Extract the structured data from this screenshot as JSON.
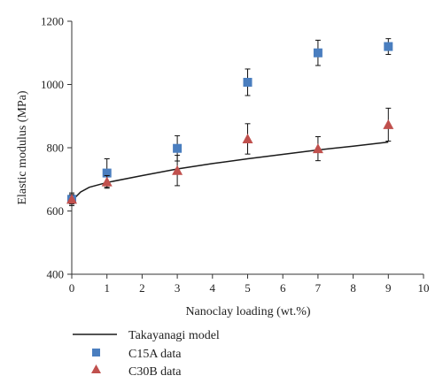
{
  "chart_data": {
    "type": "scatter",
    "title": "",
    "xlabel": "Nanoclay loading (wt.%)",
    "ylabel": "Elastic modulus (MPa)",
    "xlim": [
      0,
      10
    ],
    "ylim": [
      400,
      1200
    ],
    "x_ticks": [
      "0",
      "1",
      "2",
      "3",
      "4",
      "5",
      "6",
      "7",
      "8",
      "9",
      "10"
    ],
    "y_ticks": [
      "400",
      "600",
      "800",
      "1000",
      "1200"
    ],
    "grid": false,
    "legend_position": "bottom",
    "series": [
      {
        "name": "Takayanagi model",
        "kind": "line",
        "color": "#1a1a1a",
        "points": [
          [
            0,
            632
          ],
          [
            0.25,
            660
          ],
          [
            0.5,
            675
          ],
          [
            1,
            690
          ],
          [
            2,
            712
          ],
          [
            3,
            733
          ],
          [
            4,
            750
          ],
          [
            5,
            765
          ],
          [
            6,
            779
          ],
          [
            7,
            793
          ],
          [
            8,
            805
          ],
          [
            9,
            818
          ]
        ]
      },
      {
        "name": "C15A data",
        "kind": "square-markers",
        "color": "#4a7ebf",
        "points": [
          {
            "x": 0,
            "y": 637,
            "err": 20
          },
          {
            "x": 1,
            "y": 720,
            "err": 45
          },
          {
            "x": 3,
            "y": 798,
            "err": 40
          },
          {
            "x": 5,
            "y": 1007,
            "err": 42
          },
          {
            "x": 7,
            "y": 1100,
            "err": 40
          },
          {
            "x": 9,
            "y": 1120,
            "err": 25
          }
        ]
      },
      {
        "name": "C30B data",
        "kind": "triangle-markers",
        "color": "#c0504d",
        "points": [
          {
            "x": 0,
            "y": 637,
            "err": 15
          },
          {
            "x": 1,
            "y": 692,
            "err": 20
          },
          {
            "x": 3,
            "y": 728,
            "err": 48
          },
          {
            "x": 5,
            "y": 828,
            "err": 48
          },
          {
            "x": 7,
            "y": 797,
            "err": 38
          },
          {
            "x": 9,
            "y": 873,
            "err": 52
          }
        ]
      }
    ]
  }
}
